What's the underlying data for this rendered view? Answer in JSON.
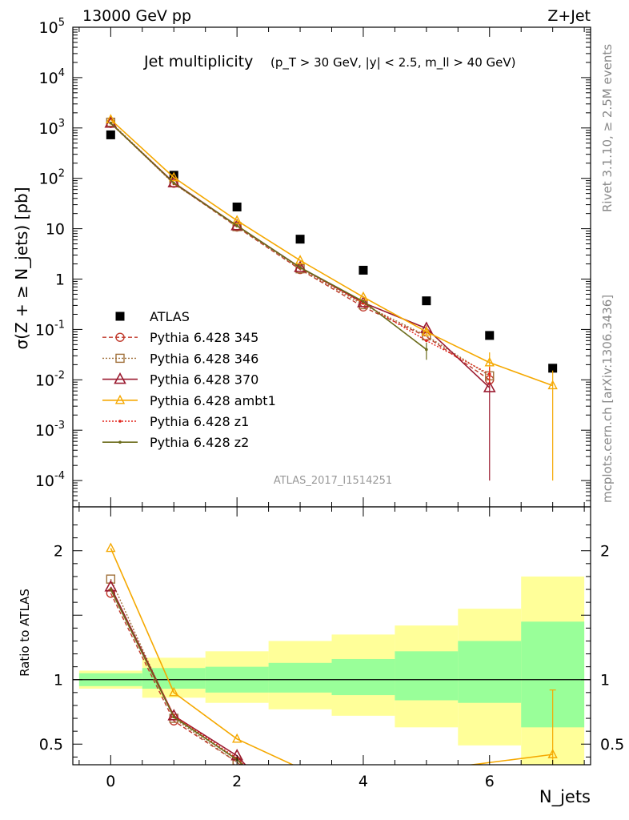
{
  "header": {
    "left": "13000 GeV pp",
    "right": "Z+Jet"
  },
  "side": {
    "rivet": "Rivet 3.1.10, ≥ 2.5M events",
    "mcplots": "mcplots.cern.ch [arXiv:1306.3436]"
  },
  "watermark": "ATLAS_2017_I1514251",
  "colors": {
    "atlas": "#000000",
    "p345": "#c0392b",
    "p346": "#a0703a",
    "p370": "#9b1b30",
    "ambt1": "#f5a800",
    "z1": "#e2231a",
    "z2": "#6b6b1a",
    "band_inner": "#99ff99",
    "band_outer": "#ffff99"
  },
  "chart_data": [
    {
      "type": "line",
      "title": "Jet multiplicity",
      "title_cuts": "(p_T > 30 GeV, |y| < 2.5, m_ll > 40 GeV)",
      "ylabel": "σ(Z + ≥ N_jets) [pb]",
      "yscale": "log",
      "ylim": [
        3e-05,
        100000
      ],
      "xlim": [
        -0.6,
        7.6
      ],
      "legend": "left",
      "x": [
        0,
        1,
        2,
        3,
        4,
        5,
        6,
        7
      ],
      "series": [
        {
          "name": "ATLAS",
          "style": "data",
          "x": [
            0,
            1,
            2,
            3,
            4,
            5,
            6,
            7
          ],
          "values": [
            730,
            115,
            27,
            6.2,
            1.5,
            0.37,
            0.076,
            0.017
          ]
        },
        {
          "name": "Pythia 6.428 345",
          "style": "circle-dashed",
          "x": [
            0,
            1,
            2,
            3,
            4,
            5,
            6
          ],
          "values": [
            1230,
            80,
            10.8,
            1.55,
            0.28,
            0.072,
            0.01
          ]
        },
        {
          "name": "Pythia 6.428 346",
          "style": "square-dotted",
          "x": [
            0,
            1,
            2,
            3,
            4,
            5,
            6
          ],
          "values": [
            1300,
            82,
            11,
            1.6,
            0.31,
            0.075,
            0.012
          ]
        },
        {
          "name": "Pythia 6.428 370",
          "style": "triangle-solid",
          "x": [
            0,
            1,
            2,
            3,
            4,
            5,
            6
          ],
          "values": [
            1250,
            82,
            11.5,
            1.7,
            0.34,
            0.105,
            0.007
          ],
          "errors": [
            0,
            0,
            0,
            0,
            0,
            0.015,
            0.0069
          ]
        },
        {
          "name": "Pythia 6.428 ambt1",
          "style": "triangle-open",
          "x": [
            0,
            1,
            2,
            3,
            4,
            5,
            6,
            7
          ],
          "values": [
            1470,
            104,
            14.5,
            2.35,
            0.44,
            0.09,
            0.022,
            0.0077
          ],
          "errors": [
            0,
            0,
            0,
            0,
            0,
            0.02,
            0.013,
            0.0076
          ]
        },
        {
          "name": "Pythia 6.428 z1",
          "style": "dot-dotted",
          "x": [
            0,
            1,
            2,
            3,
            4,
            5,
            6
          ],
          "values": [
            1250,
            78,
            11.5,
            1.7,
            0.33,
            0.06,
            0.013
          ],
          "errors": [
            0,
            0,
            0,
            0,
            0,
            0,
            0.005
          ]
        },
        {
          "name": "Pythia 6.428 z2",
          "style": "dot-solid",
          "x": [
            0,
            1,
            2,
            3,
            4,
            5
          ],
          "values": [
            1250,
            80,
            11.5,
            1.7,
            0.36,
            0.04
          ],
          "errors": [
            0,
            0,
            0,
            0,
            0,
            0.015
          ]
        }
      ]
    },
    {
      "type": "line",
      "ylabel": "Ratio to ATLAS",
      "xlabel": "N_jets",
      "ylim": [
        0.34,
        2.34
      ],
      "xlim": [
        -0.6,
        7.6
      ],
      "x_ticks": [
        0,
        2,
        4,
        6
      ],
      "y_ticks": [
        0.5,
        1,
        2
      ],
      "band_edges": [
        -0.5,
        0.5,
        1.5,
        2.5,
        3.5,
        4.5,
        5.5,
        6.5,
        7.5
      ],
      "band_inner": [
        [
          0.95,
          1.05
        ],
        [
          0.93,
          1.09
        ],
        [
          0.9,
          1.1
        ],
        [
          0.9,
          1.13
        ],
        [
          0.88,
          1.16
        ],
        [
          0.84,
          1.22
        ],
        [
          0.82,
          1.3
        ],
        [
          0.63,
          1.45
        ]
      ],
      "band_outer": [
        [
          0.93,
          1.07
        ],
        [
          0.86,
          1.17
        ],
        [
          0.82,
          1.22
        ],
        [
          0.77,
          1.3
        ],
        [
          0.72,
          1.35
        ],
        [
          0.63,
          1.42
        ],
        [
          0.49,
          1.55
        ],
        [
          0.3,
          1.8
        ]
      ],
      "series": [
        {
          "name": "Pythia 6.428 345",
          "style": "circle-dashed",
          "x": [
            0,
            1,
            2,
            2.4
          ],
          "values": [
            1.67,
            0.68,
            0.36,
            0.2
          ]
        },
        {
          "name": "Pythia 6.428 346",
          "style": "square-dotted",
          "x": [
            0,
            1,
            2,
            2.4
          ],
          "values": [
            1.78,
            0.7,
            0.36,
            0.2
          ]
        },
        {
          "name": "Pythia 6.428 370",
          "style": "triangle-solid",
          "x": [
            0,
            1,
            2,
            2.4
          ],
          "values": [
            1.72,
            0.72,
            0.41,
            0.2
          ]
        },
        {
          "name": "Pythia 6.428 ambt1",
          "style": "triangle-open",
          "x": [
            0,
            1,
            2,
            3.5,
            7
          ],
          "values": [
            2.02,
            0.9,
            0.54,
            0.2,
            0.42
          ],
          "errors": [
            0,
            0,
            0,
            0,
            0.5
          ]
        },
        {
          "name": "Pythia 6.428 z1",
          "style": "dot-dotted",
          "x": [
            0,
            1,
            2,
            2.4
          ],
          "values": [
            1.7,
            0.72,
            0.39,
            0.2
          ]
        },
        {
          "name": "Pythia 6.428 z2",
          "style": "dot-solid",
          "x": [
            0,
            1,
            2,
            2.4
          ],
          "values": [
            1.7,
            0.71,
            0.38,
            0.2
          ]
        }
      ]
    }
  ]
}
